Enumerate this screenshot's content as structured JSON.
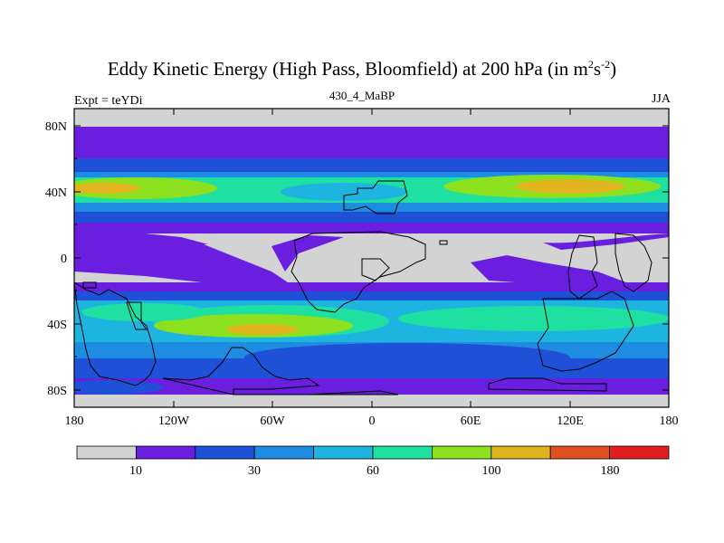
{
  "header": {
    "title": "Eddy Kinetic Energy (High Pass, Bloomfield) at 200 hPa (in m",
    "title_sup1": "2",
    "title_mid": "s",
    "title_sup2": "-2",
    "title_end": ")",
    "subtitle": "430_4_MaBP",
    "left_label": "Expt = teYDi",
    "right_label": "JJA"
  },
  "map": {
    "lat_ticks": [
      "80N",
      "40N",
      "0",
      "40S",
      "80S"
    ],
    "lon_ticks": [
      "180",
      "120W",
      "60W",
      "0",
      "60E",
      "120E",
      "180"
    ]
  },
  "colorbar": {
    "colors": [
      "#d3d3d3",
      "#6a1ee0",
      "#1e50d8",
      "#1e8ce0",
      "#1eb4e0",
      "#1ee0a0",
      "#8ce01e",
      "#e0b41e",
      "#e0501e",
      "#e01e1e"
    ],
    "labels": [
      "10",
      "30",
      "60",
      "100",
      "180"
    ]
  }
}
